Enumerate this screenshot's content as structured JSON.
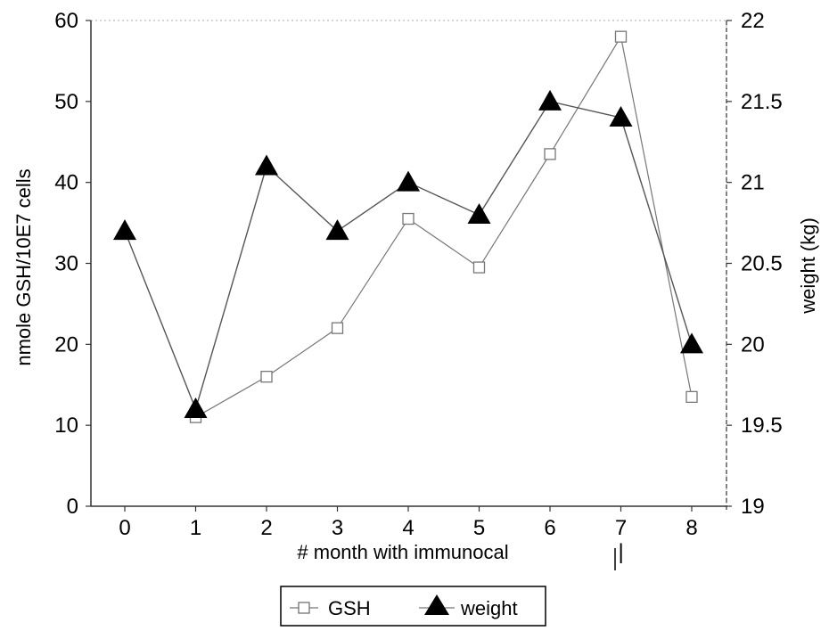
{
  "chart_data": {
    "type": "line",
    "title": "",
    "xlabel": "# month with immunocal",
    "ylabel": "nmole GSH/10E7 cells",
    "y2label": "weight (kg)",
    "categories": [
      0,
      1,
      2,
      3,
      4,
      5,
      6,
      7,
      8
    ],
    "x_tick_labels": [
      "0",
      "1",
      "2",
      "3",
      "4",
      "5",
      "6",
      "7",
      "8"
    ],
    "ylim": [
      0,
      60
    ],
    "y_ticks": [
      0,
      10,
      20,
      30,
      40,
      50,
      60
    ],
    "y_tick_labels": [
      "0",
      "10",
      "20",
      "30",
      "40",
      "50",
      "60"
    ],
    "y2lim": [
      19,
      22
    ],
    "y2_ticks": [
      19,
      19.5,
      20,
      20.5,
      21,
      21.5,
      22
    ],
    "y2_tick_labels": [
      "19",
      "19.5",
      "20",
      "20.5",
      "21",
      "21.5",
      "22"
    ],
    "grid": false,
    "legend_position": "bottom-center",
    "series": [
      {
        "name": "GSH",
        "axis": "left",
        "marker": "open-square",
        "x": [
          1,
          2,
          3,
          4,
          5,
          6,
          7,
          8
        ],
        "values": [
          11,
          16,
          22,
          35.5,
          29.5,
          43.5,
          58,
          13.5
        ]
      },
      {
        "name": "weight",
        "axis": "right",
        "marker": "filled-triangle",
        "x": [
          0,
          1,
          2,
          3,
          4,
          5,
          6,
          7,
          8
        ],
        "values": [
          20.7,
          19.6,
          21.1,
          20.7,
          21.0,
          20.8,
          21.5,
          21.4,
          20.0
        ]
      }
    ]
  },
  "annotations": {
    "month_7_marker": "|"
  },
  "colors": {
    "line": "#555555",
    "marker": "#000000",
    "axis": "#333333"
  }
}
